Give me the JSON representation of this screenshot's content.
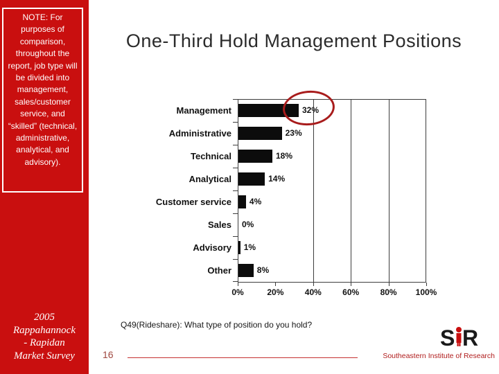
{
  "slide": {
    "title": "One-Third Hold Management Positions",
    "note": "NOTE: For purposes of comparison, throughout the report, job type will be divided into management, sales/customer service, and “skilled” (technical, administrative, analytical, and advisory).",
    "survey_label_lines": [
      "2005",
      "Rappahannock",
      "- Rapidan",
      "Market Survey"
    ],
    "question": "Q49(Rideshare): What type of position do you hold?",
    "page_number": "16",
    "footer_org": "Southeastern Institute of Research",
    "logo": {
      "letter_s": "S",
      "letter_r": "R"
    },
    "colors": {
      "sidebar_red": "#c90f0f",
      "divider_red": "#c53030",
      "ellipse_red": "#a81c1c",
      "page_number_red": "#a04840",
      "bar_black": "#0c0c0c",
      "title_gray": "#2b2b2b"
    }
  },
  "chart_data": {
    "type": "bar",
    "orientation": "horizontal",
    "title": "",
    "xlabel": "",
    "ylabel": "",
    "categories": [
      "Management",
      "Administrative",
      "Technical",
      "Analytical",
      "Customer service",
      "Sales",
      "Advisory",
      "Other"
    ],
    "values": [
      32,
      23,
      18,
      14,
      4,
      0,
      1,
      8
    ],
    "value_labels": [
      "32%",
      "23%",
      "18%",
      "14%",
      "4%",
      "0%",
      "1%",
      "8%"
    ],
    "x_tick_values": [
      0,
      20,
      40,
      60,
      80,
      100
    ],
    "x_tick_labels": [
      "0%",
      "20%",
      "40%",
      "60%",
      "80%",
      "100%"
    ],
    "xlim": [
      0,
      100
    ],
    "gridlines_at": [
      40,
      60,
      80
    ],
    "grid": "vertical only",
    "legend": "none",
    "annotation": {
      "shape": "red ellipse",
      "highlights": "Management 32%"
    }
  }
}
